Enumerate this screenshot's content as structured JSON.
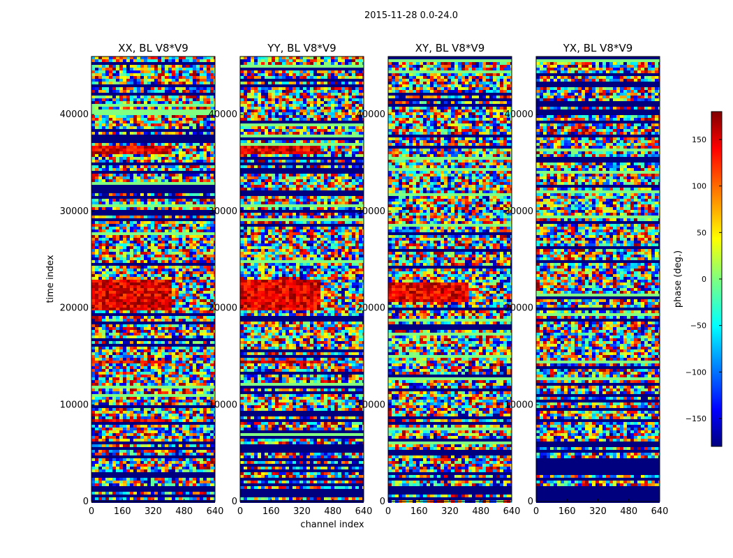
{
  "figure": {
    "suptitle": "2015-11-28 0.0-24.0",
    "xlabel": "channel index",
    "ylabel": "time index"
  },
  "chart_data": [
    {
      "type": "heatmap",
      "title": "XX, BL V8*V9",
      "xlim": [
        0,
        640
      ],
      "ylim": [
        0,
        46000
      ],
      "xticks": [
        0,
        160,
        320,
        480,
        640
      ],
      "yticks": [
        0,
        10000,
        20000,
        30000,
        40000
      ],
      "warm_bands": [
        [
          36000,
          37000
        ],
        [
          19800,
          23200
        ],
        [
          14300,
          14800
        ],
        [
          8300,
          8600
        ]
      ],
      "clim": [
        -180,
        180
      ]
    },
    {
      "type": "heatmap",
      "title": "YY, BL V8*V9",
      "xlim": [
        0,
        640
      ],
      "ylim": [
        0,
        46000
      ],
      "xticks": [
        0,
        160,
        320,
        480,
        640
      ],
      "yticks": [
        0,
        10000,
        20000,
        30000,
        40000
      ],
      "warm_bands": [
        [
          36000,
          37000
        ],
        [
          19800,
          23200
        ],
        [
          14300,
          14800
        ]
      ],
      "clim": [
        -180,
        180
      ]
    },
    {
      "type": "heatmap",
      "title": "XY, BL V8*V9",
      "xlim": [
        0,
        640
      ],
      "ylim": [
        0,
        46000
      ],
      "xticks": [
        0,
        160,
        320,
        480,
        640
      ],
      "yticks": [
        0,
        10000,
        20000,
        30000,
        40000
      ],
      "warm_bands": [
        [
          20800,
          22800
        ]
      ],
      "clim": [
        -180,
        180
      ]
    },
    {
      "type": "heatmap",
      "title": "YX, BL V8*V9",
      "xlim": [
        0,
        640
      ],
      "ylim": [
        0,
        46000
      ],
      "xticks": [
        0,
        160,
        320,
        480,
        640
      ],
      "yticks": [
        0,
        10000,
        20000,
        30000,
        40000
      ],
      "warm_bands": [],
      "clim": [
        -180,
        180
      ]
    }
  ],
  "colorbar": {
    "label": "phase (deg.)",
    "range": [
      -180,
      180
    ],
    "ticks": [
      150,
      100,
      50,
      0,
      -50,
      -100,
      -150
    ],
    "tick_labels": [
      "150",
      "100",
      "50",
      "0",
      "−50",
      "−100",
      "−150"
    ],
    "colormap": "jet"
  }
}
